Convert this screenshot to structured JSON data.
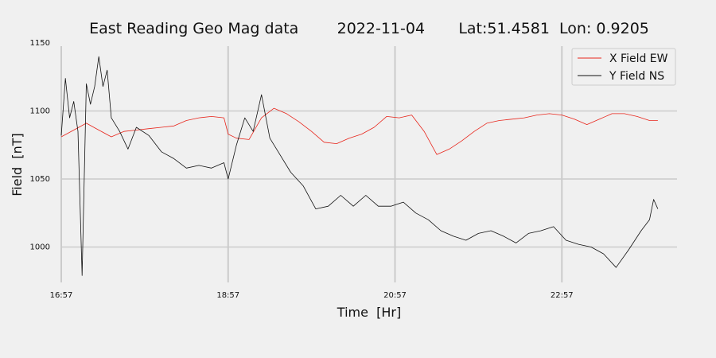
{
  "chart_data": {
    "type": "line",
    "title": "East Reading Geo Mag data        2022-11-04       Lat:51.4581  Lon: 0.9205",
    "xlabel": "Time  [Hr]",
    "ylabel": "Field  [nT]",
    "xlim": [
      16.95,
      24.33
    ],
    "ylim": [
      974,
      1150
    ],
    "x_ticks": [
      {
        "label": "16:57",
        "value": 16.95
      },
      {
        "label": "18:57",
        "value": 18.95
      },
      {
        "label": "20:57",
        "value": 20.95
      },
      {
        "label": "22:57",
        "value": 22.95
      }
    ],
    "y_ticks": [
      1000,
      1050,
      1100,
      1150
    ],
    "grid": true,
    "legend_position": "top-right",
    "series": [
      {
        "name": "X Field EW",
        "color": "#e8261c",
        "x": [
          16.95,
          17.1,
          17.25,
          17.4,
          17.55,
          17.7,
          17.85,
          18.0,
          18.15,
          18.3,
          18.45,
          18.6,
          18.75,
          18.9,
          18.95,
          19.05,
          19.2,
          19.35,
          19.5,
          19.65,
          19.8,
          19.95,
          20.1,
          20.25,
          20.4,
          20.55,
          20.7,
          20.85,
          21.0,
          21.15,
          21.3,
          21.45,
          21.6,
          21.75,
          21.9,
          22.05,
          22.2,
          22.35,
          22.5,
          22.65,
          22.8,
          22.95,
          23.1,
          23.25,
          23.4,
          23.55,
          23.7,
          23.85,
          24.0,
          24.1
        ],
        "y": [
          1081,
          1086,
          1091,
          1086,
          1081,
          1085,
          1086,
          1087,
          1088,
          1089,
          1093,
          1095,
          1096,
          1095,
          1083,
          1080,
          1079,
          1095,
          1102,
          1098,
          1092,
          1085,
          1077,
          1076,
          1080,
          1083,
          1088,
          1096,
          1095,
          1097,
          1085,
          1068,
          1072,
          1078,
          1085,
          1091,
          1093,
          1094,
          1095,
          1097,
          1098,
          1097,
          1094,
          1090,
          1094,
          1098,
          1098,
          1096,
          1093,
          1093
        ]
      },
      {
        "name": "Y Field NS",
        "color": "#111111",
        "x": [
          16.95,
          17.0,
          17.05,
          17.1,
          17.15,
          17.2,
          17.25,
          17.3,
          17.35,
          17.4,
          17.45,
          17.5,
          17.55,
          17.65,
          17.75,
          17.85,
          18.0,
          18.15,
          18.3,
          18.45,
          18.6,
          18.75,
          18.9,
          18.95,
          19.05,
          19.15,
          19.25,
          19.35,
          19.45,
          19.55,
          19.7,
          19.85,
          20.0,
          20.15,
          20.3,
          20.45,
          20.6,
          20.75,
          20.9,
          21.05,
          21.2,
          21.35,
          21.5,
          21.65,
          21.8,
          21.95,
          22.1,
          22.25,
          22.4,
          22.55,
          22.7,
          22.85,
          23.0,
          23.15,
          23.3,
          23.45,
          23.6,
          23.75,
          23.9,
          24.0,
          24.05,
          24.1
        ],
        "y": [
          1082,
          1124,
          1095,
          1107,
          1085,
          979,
          1120,
          1105,
          1118,
          1140,
          1118,
          1130,
          1095,
          1085,
          1072,
          1088,
          1082,
          1070,
          1065,
          1058,
          1060,
          1058,
          1062,
          1050,
          1075,
          1095,
          1085,
          1112,
          1080,
          1070,
          1055,
          1045,
          1028,
          1030,
          1038,
          1030,
          1038,
          1030,
          1030,
          1033,
          1025,
          1020,
          1012,
          1008,
          1005,
          1010,
          1012,
          1008,
          1003,
          1010,
          1012,
          1015,
          1005,
          1002,
          1000,
          995,
          985,
          998,
          1012,
          1020,
          1035,
          1028
        ]
      }
    ]
  }
}
